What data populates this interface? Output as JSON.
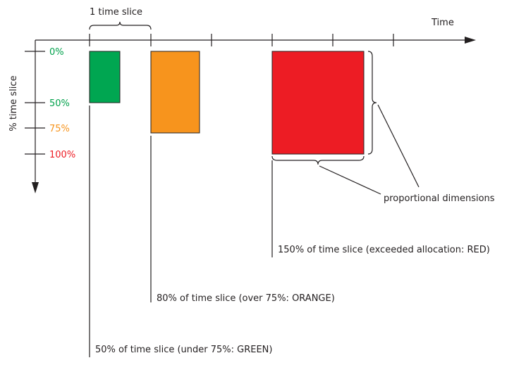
{
  "labels": {
    "time_axis": "Time",
    "percent_axis": "% time slice",
    "slice_brace": "1 time slice",
    "proportional": "proportional dimensions",
    "note_red": "150% of time slice (exceeded allocation: RED)",
    "note_orange": "80% of time slice (over 75%: ORANGE)",
    "note_green": "50% of time slice (under 75%: GREEN)"
  },
  "ticks": [
    {
      "label": "0%",
      "value": 0,
      "color": "#00a14b"
    },
    {
      "label": "50%",
      "value": 50,
      "color": "#00a14b"
    },
    {
      "label": "75%",
      "value": 75,
      "color": "#f7941d"
    },
    {
      "label": "100%",
      "value": 100,
      "color": "#ed1c24"
    }
  ],
  "boxes": [
    {
      "name": "green-usage-box",
      "percent": 50,
      "color": "#00a651"
    },
    {
      "name": "orange-usage-box",
      "percent": 80,
      "color": "#f7941d"
    },
    {
      "name": "red-usage-box",
      "percent": 150,
      "color": "#ed1c24"
    }
  ],
  "colors": {
    "axis": "#231f20",
    "green": "#00a651",
    "orange": "#f7941d",
    "red": "#ed1c24"
  }
}
